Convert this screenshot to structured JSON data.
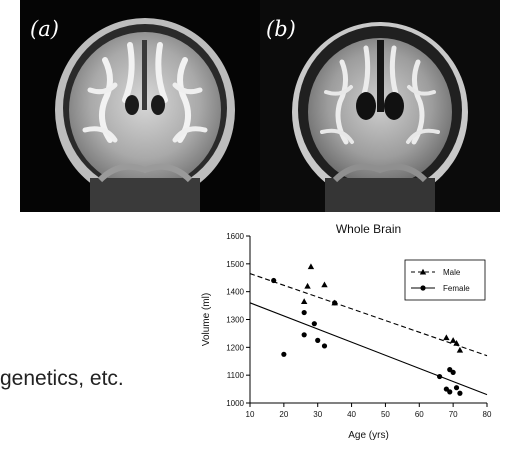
{
  "figure": {
    "panel_labels": [
      "(a)",
      "(b)"
    ],
    "side_text": "genetics, etc."
  },
  "chart_data": {
    "type": "scatter",
    "title": "Whole Brain",
    "xlabel": "Age (yrs)",
    "ylabel": "Volume (ml)",
    "xlim": [
      10,
      80
    ],
    "ylim": [
      1000,
      1600
    ],
    "x_ticks": [
      10,
      20,
      30,
      40,
      50,
      60,
      70,
      80
    ],
    "y_ticks": [
      1000,
      1100,
      1200,
      1300,
      1400,
      1500,
      1600
    ],
    "grid": false,
    "legend_position": "top-right",
    "series": [
      {
        "name": "Male",
        "marker": "triangle",
        "line_style": "dashed",
        "points": [
          [
            26,
            1365
          ],
          [
            27,
            1420
          ],
          [
            28,
            1490
          ],
          [
            32,
            1425
          ],
          [
            35,
            1360
          ],
          [
            68,
            1235
          ],
          [
            70,
            1225
          ],
          [
            71,
            1215
          ],
          [
            72,
            1190
          ]
        ],
        "fit": [
          [
            10,
            1465
          ],
          [
            80,
            1170
          ]
        ]
      },
      {
        "name": "Female",
        "marker": "circle",
        "line_style": "solid",
        "points": [
          [
            17,
            1440
          ],
          [
            20,
            1175
          ],
          [
            26,
            1325
          ],
          [
            26,
            1245
          ],
          [
            29,
            1285
          ],
          [
            30,
            1225
          ],
          [
            32,
            1205
          ],
          [
            35,
            1360
          ],
          [
            66,
            1095
          ],
          [
            68,
            1050
          ],
          [
            69,
            1120
          ],
          [
            69,
            1040
          ],
          [
            70,
            1110
          ],
          [
            71,
            1055
          ],
          [
            72,
            1035
          ]
        ],
        "fit": [
          [
            10,
            1360
          ],
          [
            80,
            1030
          ]
        ]
      }
    ]
  }
}
